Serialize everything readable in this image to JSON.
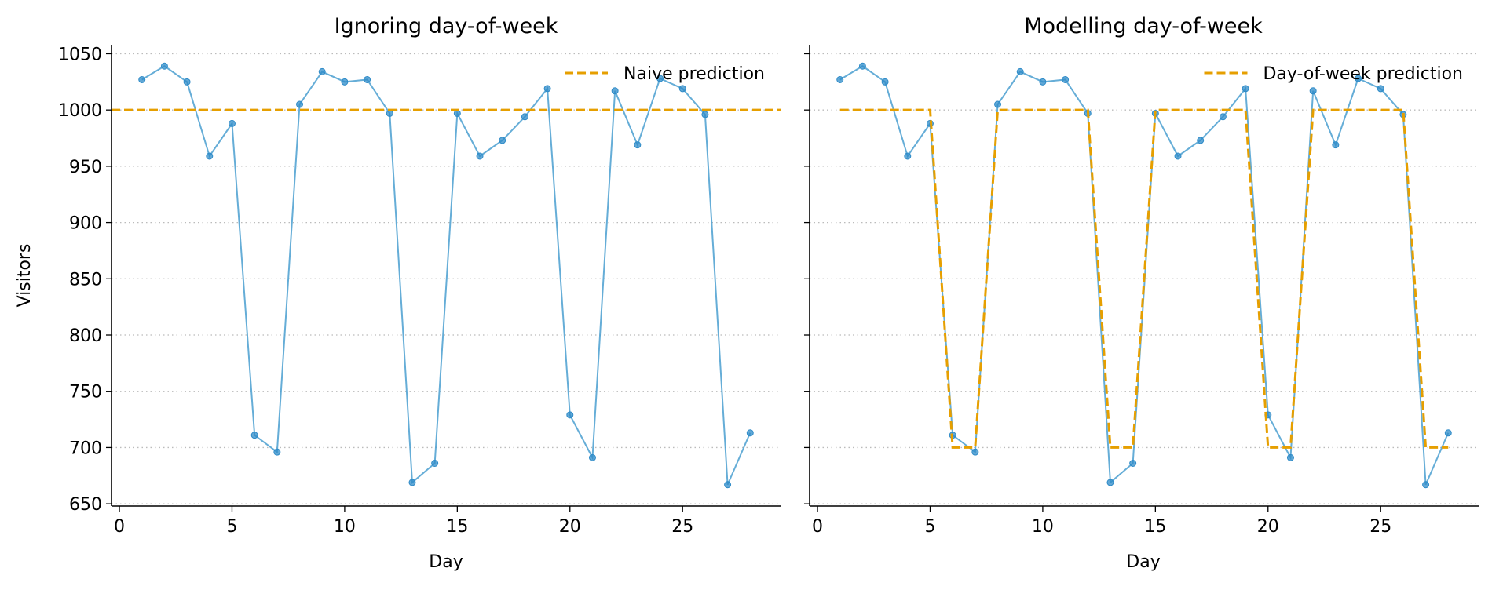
{
  "chart_data": [
    {
      "type": "line",
      "title": "Ignoring day-of-week",
      "xlabel": "Day",
      "ylabel": "Visitors",
      "xlim": [
        -0.35,
        29.35
      ],
      "ylim": [
        648,
        1058
      ],
      "xticks": [
        0,
        5,
        10,
        15,
        20,
        25
      ],
      "yticks": [
        650,
        700,
        750,
        800,
        850,
        900,
        950,
        1000,
        1050
      ],
      "grid": "horizontal dotted",
      "legend_position": "top-right",
      "x": [
        1,
        2,
        3,
        4,
        5,
        6,
        7,
        8,
        9,
        10,
        11,
        12,
        13,
        14,
        15,
        16,
        17,
        18,
        19,
        20,
        21,
        22,
        23,
        24,
        25,
        26,
        27,
        28
      ],
      "series": [
        {
          "values": [
            1027,
            1039,
            1025,
            959,
            988,
            711,
            696,
            1005,
            1034,
            1025,
            1027,
            997,
            669,
            686,
            997,
            959,
            973,
            994,
            1019,
            729,
            691,
            1017,
            969,
            1028,
            1019,
            996,
            667,
            713
          ],
          "color": "#4a9fd0",
          "style": "line-markers"
        },
        {
          "name": "Naive prediction",
          "values": [
            1000,
            1000,
            1000,
            1000,
            1000,
            1000,
            1000,
            1000,
            1000,
            1000,
            1000,
            1000,
            1000,
            1000,
            1000,
            1000,
            1000,
            1000,
            1000,
            1000,
            1000,
            1000,
            1000,
            1000,
            1000,
            1000,
            1000,
            1000
          ],
          "color": "#e69f00",
          "style": "dashed",
          "span": "full-width"
        }
      ]
    },
    {
      "type": "line",
      "title": "Modelling day-of-week",
      "xlabel": "Day",
      "ylabel": "",
      "xlim": [
        -0.35,
        29.35
      ],
      "ylim": [
        648,
        1058
      ],
      "xticks": [
        0,
        5,
        10,
        15,
        20,
        25
      ],
      "yticks": [
        650,
        700,
        750,
        800,
        850,
        900,
        950,
        1000,
        1050
      ],
      "shared_y": true,
      "grid": "horizontal dotted",
      "legend_position": "top-right",
      "x": [
        1,
        2,
        3,
        4,
        5,
        6,
        7,
        8,
        9,
        10,
        11,
        12,
        13,
        14,
        15,
        16,
        17,
        18,
        19,
        20,
        21,
        22,
        23,
        24,
        25,
        26,
        27,
        28
      ],
      "series": [
        {
          "values": [
            1027,
            1039,
            1025,
            959,
            988,
            711,
            696,
            1005,
            1034,
            1025,
            1027,
            997,
            669,
            686,
            997,
            959,
            973,
            994,
            1019,
            729,
            691,
            1017,
            969,
            1028,
            1019,
            996,
            667,
            713
          ],
          "color": "#4a9fd0",
          "style": "line-markers"
        },
        {
          "name": "Day-of-week prediction",
          "values": [
            1000,
            1000,
            1000,
            1000,
            1000,
            700,
            700,
            1000,
            1000,
            1000,
            1000,
            1000,
            700,
            700,
            1000,
            1000,
            1000,
            1000,
            1000,
            700,
            700,
            1000,
            1000,
            1000,
            1000,
            1000,
            700,
            700
          ],
          "color": "#e69f00",
          "style": "dashed"
        }
      ]
    }
  ]
}
